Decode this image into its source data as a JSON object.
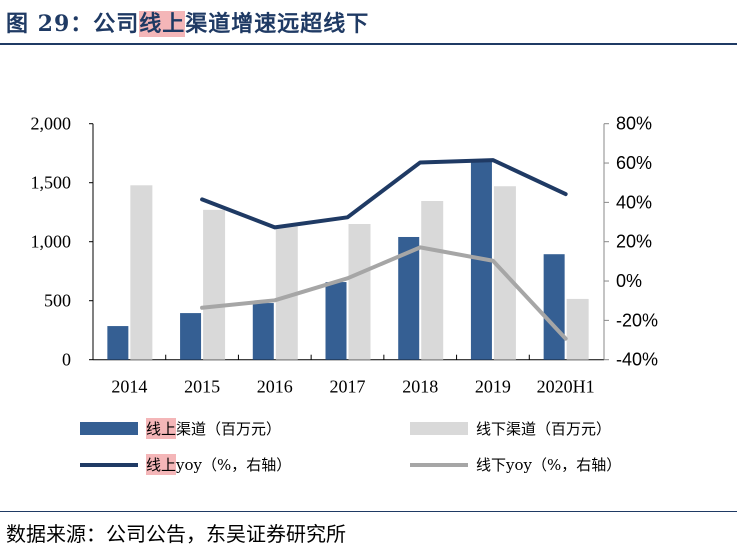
{
  "title": {
    "prefix": "图 29：公司",
    "highlight": "线上",
    "suffix": "渠道增速远超线下"
  },
  "source": "数据来源：公司公告，东吴证券研究所",
  "colors": {
    "online": "#355f93",
    "offline": "#d9d9d9",
    "online_line": "#1f3a64",
    "offline_line": "#a6a6a6",
    "highlight": "#f4b6b8"
  },
  "chart_data": {
    "type": "bar+line",
    "categories": [
      "2014",
      "2015",
      "2016",
      "2017",
      "2018",
      "2019",
      "2020H1"
    ],
    "y_left": {
      "lim": [
        0,
        2000
      ],
      "ticks": [
        0,
        500,
        1000,
        1500,
        2000
      ],
      "tick_labels": [
        "0",
        "500",
        "1,000",
        "1,500",
        "2,000"
      ]
    },
    "y_right": {
      "lim": [
        -40,
        80
      ],
      "ticks": [
        -40,
        -20,
        0,
        20,
        40,
        60,
        80
      ],
      "tick_labels": [
        "-40%",
        "-20%",
        "0%",
        "20%",
        "40%",
        "60%",
        "80%"
      ]
    },
    "grid": false,
    "legend_position": "bottom",
    "series": [
      {
        "name": "线上渠道（百万元）",
        "name_hl": "线上",
        "name_rest": "渠道（百万元）",
        "type": "bar",
        "axis": "left",
        "values": [
          285,
          395,
          480,
          658,
          1040,
          1690,
          894
        ]
      },
      {
        "name": "线下渠道（百万元）",
        "type": "bar",
        "axis": "left",
        "values": [
          1478,
          1270,
          1130,
          1150,
          1345,
          1470,
          515
        ]
      },
      {
        "name": "线上yoy（%，右轴）",
        "name_hl": "线上",
        "name_rest": "yoy（%，右轴）",
        "type": "line",
        "axis": "right",
        "values": [
          null,
          41.5,
          27.3,
          32.4,
          60.3,
          61.5,
          44.2
        ]
      },
      {
        "name": "线下yoy（%，右轴）",
        "type": "line",
        "axis": "right",
        "values": [
          null,
          -13.6,
          -9.8,
          1.4,
          17.1,
          10.3,
          -29.3
        ]
      }
    ]
  }
}
